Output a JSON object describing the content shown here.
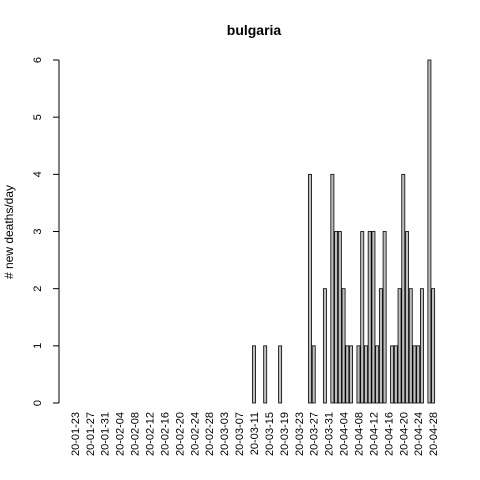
{
  "chart_data": {
    "type": "bar",
    "title": "bulgaria",
    "xlabel": "",
    "ylabel": "# new deaths/day",
    "ylim": [
      0,
      6
    ],
    "yticks": [
      0,
      1,
      2,
      3,
      4,
      5,
      6
    ],
    "grid": false,
    "legend": "none",
    "bar_fill": "#bebebe",
    "bar_stroke": "#000000",
    "start_date": "2020-01-23",
    "xtick_labels": [
      "20-01-23",
      "20-01-27",
      "20-01-31",
      "20-02-04",
      "20-02-08",
      "20-02-12",
      "20-02-16",
      "20-02-20",
      "20-02-24",
      "20-02-28",
      "20-03-03",
      "20-03-07",
      "20-03-11",
      "20-03-15",
      "20-03-19",
      "20-03-23",
      "20-03-27",
      "20-03-31",
      "20-04-04",
      "20-04-08",
      "20-04-12",
      "20-04-16",
      "20-04-20",
      "20-04-24",
      "20-04-28"
    ],
    "values": [
      0,
      0,
      0,
      0,
      0,
      0,
      0,
      0,
      0,
      0,
      0,
      0,
      0,
      0,
      0,
      0,
      0,
      0,
      0,
      0,
      0,
      0,
      0,
      0,
      0,
      0,
      0,
      0,
      0,
      0,
      0,
      0,
      0,
      0,
      0,
      0,
      0,
      0,
      0,
      0,
      0,
      0,
      0,
      0,
      0,
      0,
      0,
      0,
      1,
      0,
      0,
      1,
      0,
      0,
      0,
      1,
      0,
      0,
      0,
      0,
      0,
      0,
      0,
      4,
      1,
      0,
      0,
      2,
      0,
      4,
      3,
      3,
      2,
      1,
      1,
      0,
      1,
      3,
      1,
      3,
      3,
      1,
      2,
      3,
      0,
      1,
      1,
      2,
      4,
      3,
      2,
      1,
      1,
      2,
      0,
      6,
      2
    ]
  }
}
